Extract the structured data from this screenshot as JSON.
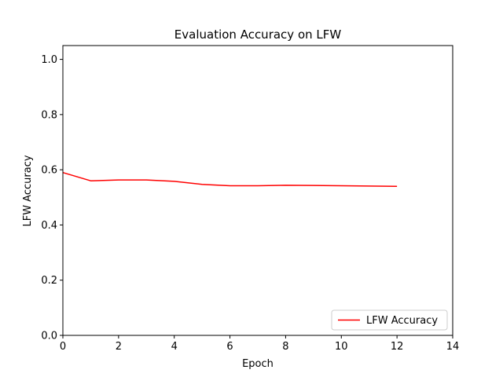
{
  "chart_data": {
    "type": "line",
    "title": "Evaluation Accuracy on LFW",
    "xlabel": "Epoch",
    "ylabel": "LFW Accuracy",
    "xlim": [
      0,
      14
    ],
    "ylim": [
      0,
      1.05
    ],
    "xticks": [
      0,
      2,
      4,
      6,
      8,
      10,
      12,
      14
    ],
    "yticks": [
      0.0,
      0.2,
      0.4,
      0.6,
      0.8,
      1.0
    ],
    "xtick_labels": [
      "0",
      "2",
      "4",
      "6",
      "8",
      "10",
      "12",
      "14"
    ],
    "ytick_labels": [
      "0.0",
      "0.2",
      "0.4",
      "0.6",
      "0.8",
      "1.0"
    ],
    "grid": false,
    "legend_position": "lower right",
    "series": [
      {
        "name": "LFW Accuracy",
        "color": "#ff0000",
        "x": [
          0,
          1,
          2,
          3,
          4,
          5,
          6,
          7,
          8,
          9,
          10,
          11,
          12
        ],
        "y": [
          0.59,
          0.56,
          0.563,
          0.563,
          0.558,
          0.547,
          0.542,
          0.542,
          0.544,
          0.543,
          0.542,
          0.541,
          0.54
        ]
      }
    ]
  }
}
